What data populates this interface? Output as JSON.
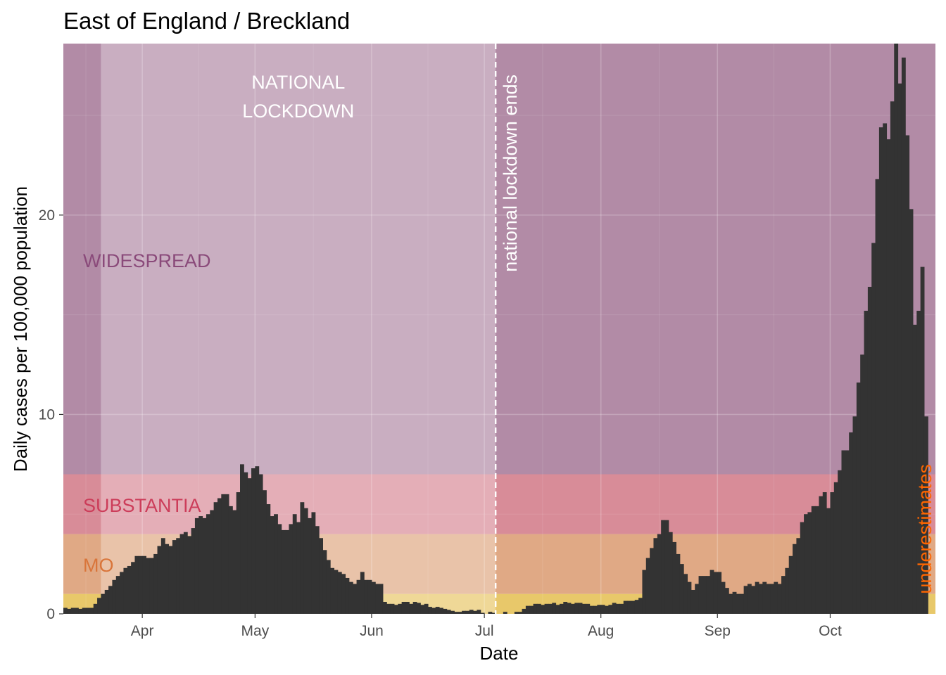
{
  "chart_data": {
    "type": "bar",
    "title": "East of England / Breckland",
    "xlabel": "Date",
    "ylabel": "Daily cases per 100,000 population",
    "x_start": "2020-03-11",
    "x_end": "2020-10-29",
    "ylim": [
      0,
      28.6
    ],
    "grid": true,
    "x_ticks": [
      {
        "date": "2020-04-01",
        "label": "Apr"
      },
      {
        "date": "2020-05-01",
        "label": "May"
      },
      {
        "date": "2020-06-01",
        "label": "Jun"
      },
      {
        "date": "2020-07-01",
        "label": "Jul"
      },
      {
        "date": "2020-08-01",
        "label": "Aug"
      },
      {
        "date": "2020-09-01",
        "label": "Sep"
      },
      {
        "date": "2020-10-01",
        "label": "Oct"
      }
    ],
    "y_ticks": [
      {
        "value": 0,
        "label": "0"
      },
      {
        "value": 10,
        "label": "10"
      },
      {
        "value": 20,
        "label": "20"
      }
    ],
    "bands": [
      {
        "from": 0,
        "to": 1,
        "color": "#e8c86a",
        "label": "",
        "label_color": "#c8a020"
      },
      {
        "from": 1,
        "to": 4,
        "color": "#e0a985",
        "label": "MO",
        "label_color": "#d9753a"
      },
      {
        "from": 4,
        "to": 7,
        "color": "#d88c98",
        "label": "SUBSTANTIA",
        "label_color": "#cc3d5a"
      },
      {
        "from": 7,
        "to": 28.6,
        "color": "#b28ba6",
        "label": "WIDESPREAD",
        "label_color": "#8a4a7a"
      }
    ],
    "lockdown": {
      "start": "2020-03-21",
      "end": "2020-07-04",
      "title_line1": "NATIONAL",
      "title_line2": "LOCKDOWN",
      "end_label": "national lockdown ends"
    },
    "underestimates_label": "underestimates",
    "bar_color": "#333333",
    "series": [
      {
        "values": [
          0.3,
          0.25,
          0.3,
          0.3,
          0.25,
          0.3,
          0.3,
          0.3,
          0.5,
          0.8,
          1.0,
          1.2,
          1.4,
          1.7,
          1.9,
          2.1,
          2.3,
          2.4,
          2.6,
          2.9,
          2.9,
          2.9,
          2.8,
          2.8,
          3.0,
          3.4,
          3.8,
          3.5,
          3.4,
          3.7,
          3.8,
          4.0,
          4.1,
          3.9,
          4.3,
          4.8,
          4.9,
          4.8,
          5.0,
          5.2,
          5.6,
          5.8,
          6.0,
          6.0,
          5.4,
          5.2,
          6.1,
          7.5,
          7.1,
          6.8,
          7.3,
          7.4,
          7.0,
          6.2,
          5.5,
          4.9,
          5.0,
          4.5,
          4.2,
          4.2,
          4.5,
          5.0,
          4.6,
          5.6,
          5.3,
          4.8,
          5.1,
          4.4,
          3.8,
          3.2,
          2.7,
          2.3,
          2.2,
          2.1,
          2.0,
          1.8,
          1.6,
          1.5,
          1.7,
          2.1,
          1.7,
          1.7,
          1.6,
          1.5,
          1.5,
          0.6,
          0.5,
          0.5,
          0.45,
          0.5,
          0.6,
          0.6,
          0.5,
          0.6,
          0.55,
          0.45,
          0.5,
          0.35,
          0.3,
          0.35,
          0.3,
          0.25,
          0.2,
          0.15,
          0.1,
          0.1,
          0.15,
          0.15,
          0.2,
          0.15,
          0.2,
          0.05,
          0.0,
          0.1,
          0.05,
          0.0,
          0.0,
          0.1,
          0.0,
          0.0,
          0.1,
          0.1,
          0.25,
          0.4,
          0.4,
          0.5,
          0.5,
          0.45,
          0.5,
          0.5,
          0.55,
          0.45,
          0.5,
          0.6,
          0.55,
          0.5,
          0.55,
          0.55,
          0.5,
          0.5,
          0.4,
          0.4,
          0.45,
          0.45,
          0.4,
          0.45,
          0.55,
          0.5,
          0.5,
          0.65,
          0.65,
          0.65,
          0.7,
          0.8,
          2.2,
          2.8,
          3.3,
          3.8,
          4.0,
          4.7,
          4.7,
          4.1,
          3.6,
          3.0,
          2.5,
          2.0,
          1.6,
          1.2,
          1.5,
          1.9,
          1.9,
          1.9,
          2.2,
          2.1,
          2.1,
          1.6,
          1.3,
          1.0,
          1.1,
          1.0,
          1.0,
          1.4,
          1.5,
          1.4,
          1.6,
          1.5,
          1.6,
          1.5,
          1.5,
          1.6,
          1.5,
          1.9,
          2.3,
          2.9,
          3.5,
          3.8,
          4.6,
          5.0,
          5.1,
          5.4,
          5.4,
          5.9,
          6.1,
          5.3,
          6.1,
          6.6,
          7.2,
          8.2,
          8.2,
          9.1,
          9.9,
          11.6,
          13.0,
          15.2,
          16.4,
          18.6,
          21.8,
          24.4,
          24.6,
          23.8,
          25.7,
          28.6,
          26.6,
          27.9,
          24.0,
          20.3,
          14.5,
          15.2,
          17.4,
          9.9
        ]
      }
    ]
  }
}
